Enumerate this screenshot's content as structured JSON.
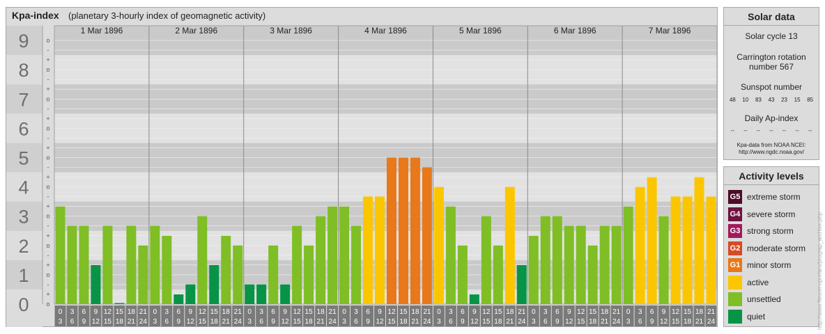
{
  "chart_data": {
    "type": "bar",
    "title": "Kpa-index",
    "subtitle": "(planetary 3-hourly index of geomagnetic activity)",
    "days": [
      "1 Mar 1896",
      "2 Mar 1896",
      "3 Mar 1896",
      "4 Mar 1896",
      "5 Mar 1896",
      "6 Mar 1896",
      "7 Mar 1896"
    ],
    "interval_labels_top": [
      "0",
      "3",
      "6",
      "9",
      "12",
      "15",
      "18",
      "21"
    ],
    "interval_labels_bottom": [
      "3",
      "6",
      "9",
      "12",
      "15",
      "18",
      "21",
      "24"
    ],
    "y_tick_labels": [
      "0",
      "1",
      "2",
      "3",
      "4",
      "5",
      "6",
      "7",
      "8",
      "9"
    ],
    "y_sub_labels": [
      "o",
      "+",
      "-"
    ],
    "ylim": [
      0,
      9.33
    ],
    "values": [
      3.33,
      2.67,
      2.67,
      1.33,
      2.67,
      0,
      2.67,
      2.0,
      2.67,
      2.33,
      0.33,
      0.67,
      3.0,
      1.33,
      2.33,
      2.0,
      0.67,
      0.67,
      2.0,
      0.67,
      2.67,
      2.0,
      3.0,
      3.33,
      3.33,
      2.67,
      3.67,
      3.67,
      5.0,
      5.0,
      5.0,
      4.67,
      4.0,
      3.33,
      2.0,
      0.33,
      3.0,
      2.0,
      4.0,
      1.33,
      2.33,
      3.0,
      3.0,
      2.67,
      2.67,
      2.0,
      2.67,
      2.67,
      3.33,
      4.0,
      4.33,
      3.0,
      3.67,
      3.67,
      4.33,
      3.67
    ],
    "level_colors": {
      "quiet": "#079446",
      "unsettled": "#7fbe25",
      "active": "#fbc600",
      "G1": "#e8781a",
      "G2": "#d54b25",
      "G3": "#a31a5c",
      "G4": "#6e1240",
      "G5": "#4e0b29"
    }
  },
  "solar": {
    "title": "Solar data",
    "cycle": "Solar cycle 13",
    "carrington_line1": "Carrington rotation",
    "carrington_line2": "number 567",
    "sunspot_title": "Sunspot number",
    "sunspots": [
      "48",
      "10",
      "83",
      "43",
      "23",
      "15",
      "85"
    ],
    "ap_title": "Daily Ap-index",
    "ap_values": [
      "--",
      "--",
      "--",
      "--",
      "--",
      "--",
      "--"
    ],
    "source_line1": "Kpa-data from NOAA NCEI:",
    "source_line2": "http://www.ngdc.noaa.gov/"
  },
  "activity": {
    "title": "Activity levels",
    "items": [
      {
        "badge": "G5",
        "label": "extreme storm",
        "color": "#4e0b29"
      },
      {
        "badge": "G4",
        "label": "severe storm",
        "color": "#6e1240"
      },
      {
        "badge": "G3",
        "label": "strong storm",
        "color": "#a31a5c"
      },
      {
        "badge": "G2",
        "label": "moderate storm",
        "color": "#d54b25"
      },
      {
        "badge": "G1",
        "label": "minor storm",
        "color": "#e8781a"
      },
      {
        "badge": "",
        "label": "active",
        "color": "#fbc600"
      },
      {
        "badge": "",
        "label": "unsettled",
        "color": "#7fbe25"
      },
      {
        "badge": "",
        "label": "quiet",
        "color": "#079446"
      }
    ]
  },
  "watermark": "http://www.fleuret-uprefaru/prog/ap_archive.php"
}
